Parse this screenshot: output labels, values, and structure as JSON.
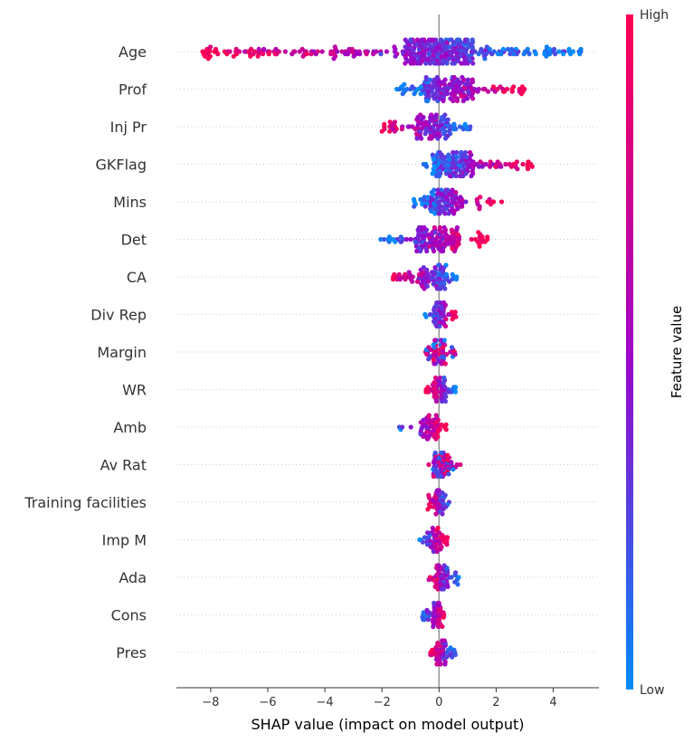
{
  "chart_data": {
    "type": "scatter",
    "subtype": "shap-beeswarm",
    "title": "",
    "xlabel": "SHAP value (impact on model output)",
    "ylabel": "",
    "xlim": [
      -9.2,
      5.6
    ],
    "xticks": [
      -8,
      -6,
      -4,
      -2,
      0,
      2,
      4
    ],
    "xtick_labels": [
      "−8",
      "−6",
      "−4",
      "−2",
      "0",
      "2",
      "4"
    ],
    "grid": "dotted horizontal row guides",
    "zero_line": true,
    "colorbar": {
      "title": "Feature value",
      "high_label": "High",
      "low_label": "Low",
      "color_low": "#008bfb",
      "color_high": "#ff0052",
      "placement": "right"
    },
    "features": [
      {
        "name": "Age",
        "min": -8.3,
        "max": 5.0,
        "low_side": "right"
      },
      {
        "name": "Prof",
        "min": -1.5,
        "max": 3.0,
        "low_side": "left"
      },
      {
        "name": "Inj Pr",
        "min": -2.0,
        "max": 1.1,
        "low_side": "right"
      },
      {
        "name": "GKFlag",
        "min": -0.6,
        "max": 3.3,
        "low_side": "left"
      },
      {
        "name": "Mins",
        "min": -0.9,
        "max": 2.2,
        "low_side": "left"
      },
      {
        "name": "Det",
        "min": -2.1,
        "max": 1.7,
        "low_side": "left"
      },
      {
        "name": "CA",
        "min": -1.8,
        "max": 0.7,
        "low_side": "right"
      },
      {
        "name": "Div Rep",
        "min": -0.5,
        "max": 0.7,
        "low_side": "left"
      },
      {
        "name": "Margin",
        "min": -0.5,
        "max": 0.6,
        "low_side": "mixed"
      },
      {
        "name": "WR",
        "min": -0.5,
        "max": 0.6,
        "low_side": "right"
      },
      {
        "name": "Amb",
        "min": -1.4,
        "max": 0.3,
        "low_side": "left"
      },
      {
        "name": "Av Rat",
        "min": -0.5,
        "max": 0.8,
        "low_side": "mixed"
      },
      {
        "name": "Training facilities",
        "min": -0.4,
        "max": 0.4,
        "low_side": "right"
      },
      {
        "name": "Imp M",
        "min": -0.7,
        "max": 0.3,
        "low_side": "left"
      },
      {
        "name": "Ada",
        "min": -0.4,
        "max": 0.7,
        "low_side": "right"
      },
      {
        "name": "Cons",
        "min": -0.6,
        "max": 0.2,
        "low_side": "left"
      },
      {
        "name": "Pres",
        "min": -0.3,
        "max": 0.6,
        "low_side": "right"
      }
    ]
  }
}
